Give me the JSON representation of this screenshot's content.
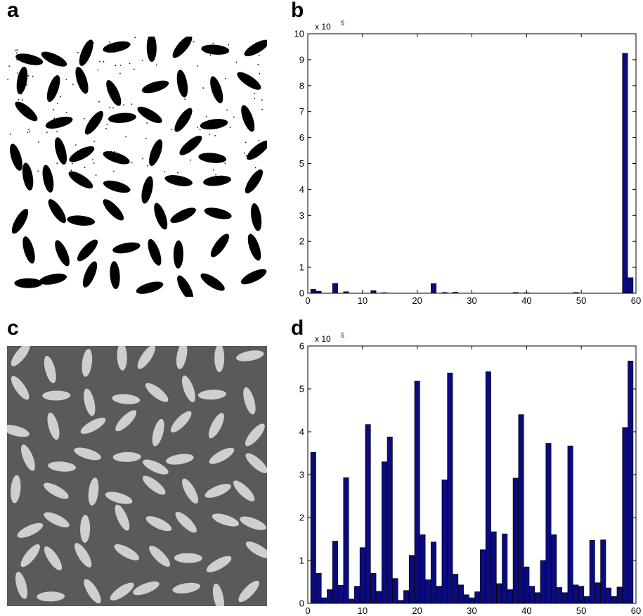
{
  "panels": {
    "a": "a",
    "b": "b",
    "c": "c",
    "d": "d"
  },
  "colors": {
    "bar_fill": "#0b0b7e",
    "bar_stroke": "#000000",
    "binary_bg": "#ffffff",
    "binary_grain": "#000000",
    "gray_bg": "#5a5a5a",
    "gray_grain": "#cfcfcf"
  },
  "chart_data": [
    {
      "id": "b",
      "type": "bar",
      "title": "",
      "xlabel": "",
      "ylabel": "",
      "multiplier_label": "x 10",
      "multiplier_exponent": "5",
      "xlim": [
        0,
        60
      ],
      "ylim": [
        0,
        10
      ],
      "xticks": [
        0,
        10,
        20,
        30,
        40,
        50,
        60
      ],
      "yticks": [
        0,
        1,
        2,
        3,
        4,
        5,
        6,
        7,
        8,
        9,
        10
      ],
      "x": [
        1,
        2,
        5,
        7,
        12,
        14,
        23,
        25,
        27,
        38,
        40,
        49,
        58,
        59
      ],
      "values": [
        0.15,
        0.08,
        0.38,
        0.06,
        0.1,
        0.02,
        0.37,
        0.03,
        0.04,
        0.03,
        0.02,
        0.03,
        9.25,
        0.6
      ],
      "grid": false
    },
    {
      "id": "d",
      "type": "bar",
      "title": "",
      "xlabel": "",
      "ylabel": "",
      "multiplier_label": "x 10",
      "multiplier_exponent": "5",
      "xlim": [
        0,
        60
      ],
      "ylim": [
        0,
        6
      ],
      "xticks": [
        0,
        10,
        20,
        30,
        40,
        50,
        60
      ],
      "yticks": [
        0,
        1,
        2,
        3,
        4,
        5,
        6
      ],
      "x": [
        1,
        2,
        3,
        4,
        5,
        6,
        7,
        8,
        9,
        10,
        11,
        12,
        13,
        14,
        15,
        16,
        17,
        18,
        19,
        20,
        21,
        22,
        23,
        24,
        25,
        26,
        27,
        28,
        29,
        30,
        31,
        32,
        33,
        34,
        35,
        36,
        37,
        38,
        39,
        40,
        41,
        42,
        43,
        44,
        45,
        46,
        47,
        48,
        49,
        50,
        51,
        52,
        53,
        54,
        55,
        56,
        57,
        58,
        59
      ],
      "values": [
        3.52,
        0.7,
        0.13,
        0.32,
        1.45,
        0.42,
        2.93,
        0.1,
        0.4,
        1.3,
        4.17,
        0.7,
        0.28,
        3.3,
        3.88,
        0.58,
        0.07,
        0.3,
        1.12,
        5.18,
        1.6,
        0.55,
        1.43,
        0.4,
        2.88,
        5.37,
        0.68,
        0.43,
        0.2,
        0.13,
        0.27,
        1.25,
        5.4,
        1.67,
        0.46,
        1.62,
        0.32,
        2.92,
        4.4,
        0.85,
        0.4,
        0.25,
        1.0,
        3.73,
        1.6,
        0.37,
        0.25,
        3.67,
        0.43,
        0.4,
        0.16,
        1.47,
        0.48,
        1.48,
        0.36,
        0.16,
        0.38,
        4.1,
        5.65
      ],
      "grid": false
    }
  ]
}
